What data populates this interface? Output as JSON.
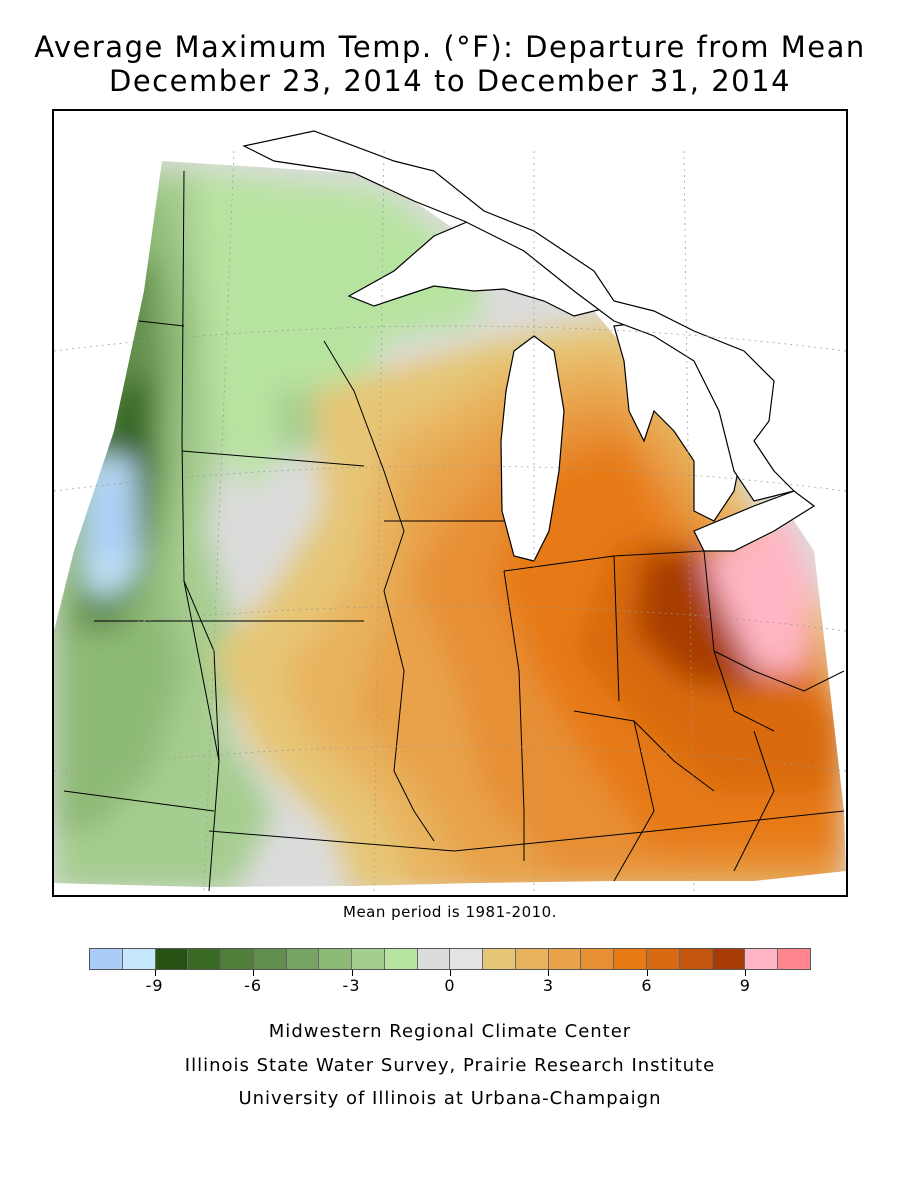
{
  "title": {
    "line1": "Average Maximum Temp. (°F): Departure from Mean",
    "line2": "December 23, 2014 to December 31, 2014"
  },
  "mean_note": "Mean period is 1981-2010.",
  "legend": {
    "colors": [
      "#a9cdf7",
      "#c6e8fb",
      "#275213",
      "#3a6b25",
      "#4f7f3a",
      "#638f4e",
      "#77a463",
      "#8eba77",
      "#a5cd8f",
      "#b7e3a0",
      "#dcdcdc",
      "#e3e3e3",
      "#e6c676",
      "#e8b35e",
      "#e8a24a",
      "#e78f34",
      "#e77a13",
      "#d96a11",
      "#c4560e",
      "#a83c06",
      "#ffb5c3",
      "#ff858e"
    ],
    "tick_labels": [
      "-9",
      "-6",
      "-3",
      "0",
      "3",
      "6",
      "9"
    ]
  },
  "credits": {
    "line1": "Midwestern Regional Climate Center",
    "line2": "Illinois State Water Survey, Prairie Research Institute",
    "line3": "University of Illinois at Urbana-Champaign"
  }
}
